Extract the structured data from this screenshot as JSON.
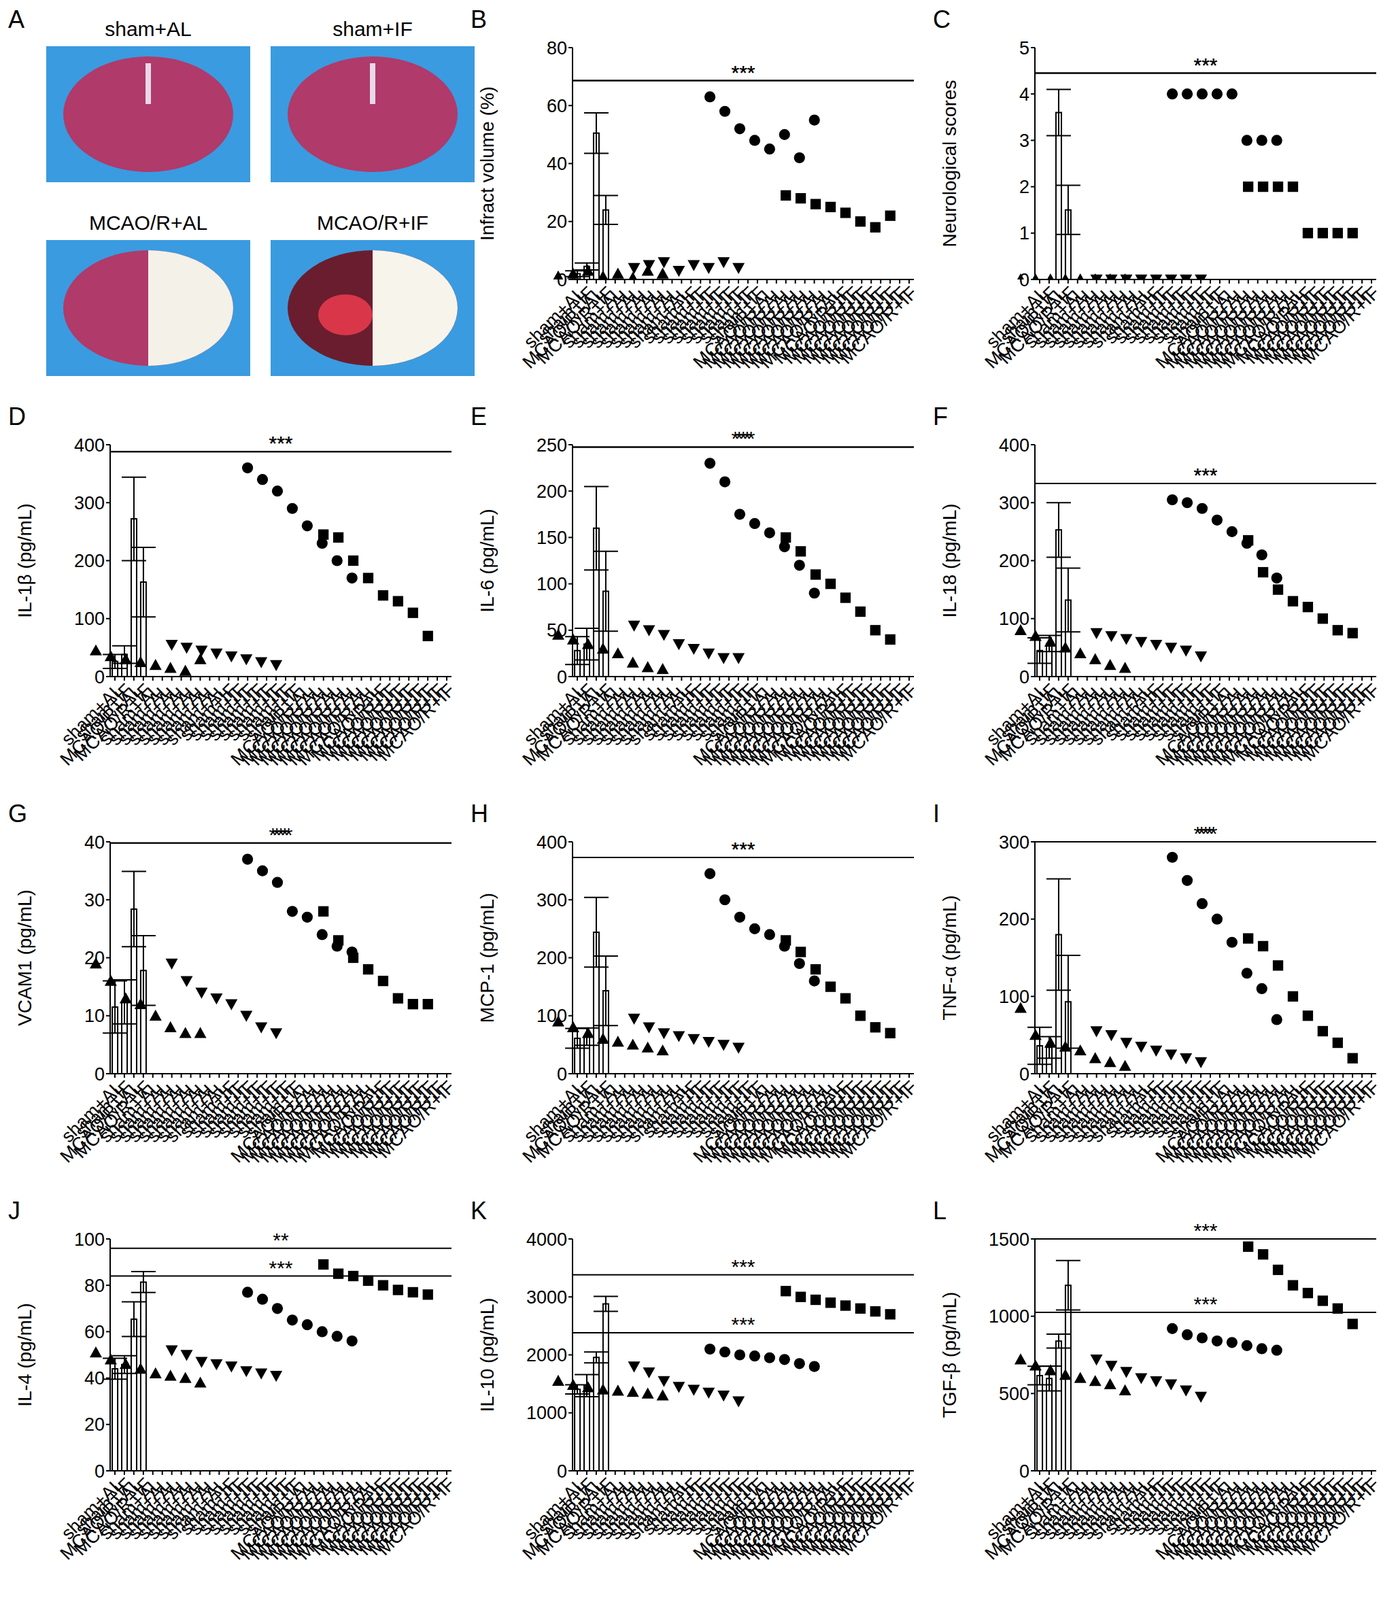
{
  "chart_data": [
    {
      "type": "image",
      "title": "A",
      "images": [
        {
          "label": "sham+AL"
        },
        {
          "label": "sham+IF"
        },
        {
          "label": "MCAO/R+AL"
        },
        {
          "label": "MCAO/R+IF"
        }
      ]
    },
    {
      "type": "bar",
      "title": "B",
      "y_label": "Infract volume (%)",
      "categories": [
        "sham+AL",
        "sham+IF",
        "MCAO/R+AL",
        "MCAO/R+IF"
      ],
      "values": [
        2,
        4.5,
        50.5,
        24
      ],
      "errors": [
        1,
        1.2,
        7,
        5
      ],
      "points": [
        {
          "marker": "triangle",
          "values": [
            1,
            2,
            3,
            1,
            2,
            0.5,
            3,
            2
          ]
        },
        {
          "marker": "triangle-down",
          "values": [
            4,
            5,
            6,
            3,
            5,
            4,
            6,
            4
          ]
        },
        {
          "marker": "circle",
          "values": [
            63,
            58,
            52,
            48,
            45,
            50,
            42,
            55
          ]
        },
        {
          "marker": "square",
          "values": [
            29,
            28,
            26,
            25,
            23,
            20,
            18,
            22
          ]
        }
      ],
      "ylim": [
        0,
        80
      ],
      "yticks": [
        0,
        20,
        40,
        60,
        80
      ],
      "annotations": [
        {
          "from": "sham+AL",
          "to": "MCAO/R+AL",
          "text": "***"
        },
        {
          "from": "MCAO/R+AL",
          "to": "MCAO/R+IF",
          "text": "***"
        }
      ]
    },
    {
      "type": "bar",
      "title": "C",
      "y_label": "Neurological scores",
      "categories": [
        "sham+AL",
        "sham+IF",
        "MCAO/R+AL",
        "MCAO/R+IF"
      ],
      "values": [
        0,
        0,
        3.6,
        1.5
      ],
      "errors": [
        0,
        0,
        0.5,
        0.53
      ],
      "points": [
        {
          "marker": "triangle",
          "values": [
            0,
            0,
            0,
            0,
            0,
            0,
            0,
            0
          ]
        },
        {
          "marker": "triangle-down",
          "values": [
            0,
            0,
            0,
            0,
            0,
            0,
            0,
            0
          ]
        },
        {
          "marker": "circle",
          "values": [
            4,
            4,
            4,
            4,
            4,
            3,
            3,
            3
          ]
        },
        {
          "marker": "square",
          "values": [
            2,
            2,
            2,
            2,
            1,
            1,
            1,
            1
          ]
        }
      ],
      "ylim": [
        0,
        5
      ],
      "yticks": [
        0,
        1,
        2,
        3,
        4,
        5
      ],
      "annotations": [
        {
          "from": "sham+AL",
          "to": "MCAO/R+AL",
          "text": "***"
        },
        {
          "from": "MCAO/R+AL",
          "to": "MCAO/R+IF",
          "text": "***"
        }
      ]
    },
    {
      "type": "bar",
      "title": "D",
      "y_label": "IL-1β (pg/mL)",
      "categories": [
        "sham+AL",
        "sham+IF",
        "MCAO/R+AL",
        "MCAO/R+IF"
      ],
      "values": [
        26,
        38,
        272,
        163
      ],
      "errors": [
        12,
        15,
        72,
        60
      ],
      "points": [
        {
          "marker": "triangle",
          "values": [
            45,
            35,
            30,
            25,
            20,
            15,
            10,
            30
          ]
        },
        {
          "marker": "triangle-down",
          "values": [
            55,
            50,
            45,
            40,
            35,
            30,
            25,
            20
          ]
        },
        {
          "marker": "circle",
          "values": [
            360,
            340,
            320,
            290,
            260,
            230,
            200,
            170
          ]
        },
        {
          "marker": "square",
          "values": [
            245,
            240,
            200,
            170,
            140,
            130,
            110,
            70
          ]
        }
      ],
      "ylim": [
        0,
        400
      ],
      "yticks": [
        0,
        100,
        200,
        300,
        400
      ],
      "annotations": [
        {
          "from": "sham+AL",
          "to": "MCAO/R+AL",
          "text": "***"
        },
        {
          "from": "MCAO/R+AL",
          "to": "MCAO/R+IF",
          "text": "***"
        }
      ]
    },
    {
      "type": "bar",
      "title": "E",
      "y_label": "IL-6 (pg/mL)",
      "categories": [
        "sham+AL",
        "sham+IF",
        "MCAO/R+AL",
        "MCAO/R+IF"
      ],
      "values": [
        28,
        35,
        160,
        92
      ],
      "errors": [
        15,
        17,
        45,
        43
      ],
      "points": [
        {
          "marker": "triangle",
          "values": [
            45,
            40,
            35,
            30,
            25,
            15,
            10,
            8
          ]
        },
        {
          "marker": "triangle-down",
          "values": [
            55,
            50,
            45,
            35,
            30,
            25,
            20,
            20
          ]
        },
        {
          "marker": "circle",
          "values": [
            230,
            210,
            175,
            165,
            155,
            140,
            120,
            90
          ]
        },
        {
          "marker": "square",
          "values": [
            150,
            135,
            110,
            100,
            85,
            70,
            50,
            40
          ]
        }
      ],
      "ylim": [
        0,
        250
      ],
      "yticks": [
        0,
        50,
        100,
        150,
        200,
        250
      ],
      "annotations": [
        {
          "from": "sham+AL",
          "to": "MCAO/R+AL",
          "text": "***"
        },
        {
          "from": "MCAO/R+AL",
          "to": "MCAO/R+IF",
          "text": "**"
        }
      ]
    },
    {
      "type": "bar",
      "title": "F",
      "y_label": "IL-18 (pg/mL)",
      "categories": [
        "sham+AL",
        "sham+IF",
        "MCAO/R+AL",
        "MCAO/R+IF"
      ],
      "values": [
        45,
        57,
        253,
        132
      ],
      "errors": [
        22,
        14,
        47,
        55
      ],
      "points": [
        {
          "marker": "triangle",
          "values": [
            80,
            70,
            60,
            50,
            40,
            30,
            20,
            15
          ]
        },
        {
          "marker": "triangle-down",
          "values": [
            75,
            70,
            65,
            60,
            55,
            50,
            45,
            35
          ]
        },
        {
          "marker": "circle",
          "values": [
            305,
            300,
            290,
            270,
            250,
            230,
            210,
            170
          ]
        },
        {
          "marker": "square",
          "values": [
            235,
            180,
            150,
            130,
            120,
            100,
            80,
            75
          ]
        }
      ],
      "ylim": [
        0,
        400
      ],
      "yticks": [
        0,
        100,
        200,
        300,
        400
      ],
      "annotations": [
        {
          "from": "sham+AL",
          "to": "MCAO/R+AL",
          "text": "***"
        },
        {
          "from": "MCAO/R+AL",
          "to": "MCAO/R+IF",
          "text": "***"
        }
      ]
    },
    {
      "type": "bar",
      "title": "G",
      "y_label": "VCAM1 (pg/mL)",
      "categories": [
        "sham+AL",
        "sham+IF",
        "MCAO/R+AL",
        "MCAO/R+IF"
      ],
      "values": [
        11.5,
        12.4,
        28.4,
        17.8
      ],
      "errors": [
        4.5,
        3.8,
        6.5,
        6
      ],
      "points": [
        {
          "marker": "triangle",
          "values": [
            19,
            16,
            13,
            12,
            10,
            8,
            7,
            7
          ]
        },
        {
          "marker": "triangle-down",
          "values": [
            19,
            16,
            14,
            13,
            12,
            10,
            8,
            7
          ]
        },
        {
          "marker": "circle",
          "values": [
            37,
            35,
            33,
            28,
            27,
            24,
            22,
            21
          ]
        },
        {
          "marker": "square",
          "values": [
            28,
            23,
            20,
            18,
            16,
            13,
            12,
            12
          ]
        }
      ],
      "ylim": [
        0,
        40
      ],
      "yticks": [
        0,
        10,
        20,
        30,
        40
      ],
      "annotations": [
        {
          "from": "sham+AL",
          "to": "MCAO/R+AL",
          "text": "***"
        },
        {
          "from": "MCAO/R+AL",
          "to": "MCAO/R+IF",
          "text": "**"
        }
      ]
    },
    {
      "type": "bar",
      "title": "H",
      "y_label": "MCP-1 (pg/mL)",
      "categories": [
        "sham+AL",
        "sham+IF",
        "MCAO/R+AL",
        "MCAO/R+IF"
      ],
      "values": [
        61,
        64,
        244,
        143
      ],
      "errors": [
        17,
        15,
        60,
        60
      ],
      "points": [
        {
          "marker": "triangle",
          "values": [
            90,
            80,
            70,
            60,
            55,
            50,
            45,
            40
          ]
        },
        {
          "marker": "triangle-down",
          "values": [
            95,
            80,
            70,
            65,
            60,
            55,
            50,
            45
          ]
        },
        {
          "marker": "circle",
          "values": [
            345,
            300,
            270,
            250,
            240,
            220,
            190,
            160
          ]
        },
        {
          "marker": "square",
          "values": [
            230,
            210,
            180,
            150,
            130,
            100,
            80,
            70
          ]
        }
      ],
      "ylim": [
        0,
        400
      ],
      "yticks": [
        0,
        100,
        200,
        300,
        400
      ],
      "annotations": [
        {
          "from": "sham+AL",
          "to": "MCAO/R+AL",
          "text": "***"
        },
        {
          "from": "MCAO/R+AL",
          "to": "MCAO/R+IF",
          "text": "***"
        }
      ]
    },
    {
      "type": "bar",
      "title": "I",
      "y_label": "TNF-α (pg/mL)",
      "categories": [
        "sham+AL",
        "sham+IF",
        "MCAO/R+AL",
        "MCAO/R+IF"
      ],
      "values": [
        36,
        34,
        180,
        93
      ],
      "errors": [
        24,
        14,
        72,
        60
      ],
      "points": [
        {
          "marker": "triangle",
          "values": [
            85,
            50,
            40,
            35,
            30,
            20,
            15,
            10
          ]
        },
        {
          "marker": "triangle-down",
          "values": [
            55,
            50,
            40,
            35,
            30,
            25,
            20,
            15
          ]
        },
        {
          "marker": "circle",
          "values": [
            280,
            250,
            220,
            200,
            170,
            130,
            110,
            70
          ]
        },
        {
          "marker": "square",
          "values": [
            175,
            165,
            140,
            100,
            75,
            55,
            40,
            20
          ]
        }
      ],
      "ylim": [
        0,
        300
      ],
      "yticks": [
        0,
        100,
        200,
        300
      ],
      "annotations": [
        {
          "from": "sham+AL",
          "to": "MCAO/R+AL",
          "text": "***"
        },
        {
          "from": "MCAO/R+AL",
          "to": "MCAO/R+IF",
          "text": "**"
        }
      ]
    },
    {
      "type": "bar",
      "title": "J",
      "y_label": "IL-4 (pg/mL)",
      "categories": [
        "sham+AL",
        "sham+IF",
        "MCAO/R+AL",
        "MCAO/R+IF"
      ],
      "values": [
        44,
        45.8,
        65.4,
        81.4
      ],
      "errors": [
        4.5,
        3.8,
        7.5,
        4.5
      ],
      "points": [
        {
          "marker": "triangle",
          "values": [
            51,
            48,
            46,
            44,
            42,
            41,
            40,
            38
          ]
        },
        {
          "marker": "triangle-down",
          "values": [
            52,
            50,
            47,
            46,
            45,
            43,
            42,
            41
          ]
        },
        {
          "marker": "circle",
          "values": [
            77,
            74,
            70,
            65,
            63,
            60,
            58,
            56
          ]
        },
        {
          "marker": "square",
          "values": [
            89,
            85,
            84,
            82,
            80,
            78,
            77,
            76
          ]
        }
      ],
      "ylim": [
        0,
        100
      ],
      "yticks": [
        0,
        20,
        40,
        60,
        80,
        100
      ],
      "annotations": [
        {
          "from": "sham+AL",
          "to": "MCAO/R+AL",
          "text": "***"
        },
        {
          "from": "MCAO/R+AL",
          "to": "MCAO/R+IF",
          "text": "**"
        }
      ]
    },
    {
      "type": "bar",
      "title": "K",
      "y_label": "IL-10 (pg/mL)",
      "categories": [
        "sham+AL",
        "sham+IF",
        "MCAO/R+AL",
        "MCAO/R+IF"
      ],
      "values": [
        1405,
        1470,
        1956,
        2880
      ],
      "errors": [
        80,
        190,
        95,
        130
      ],
      "points": [
        {
          "marker": "triangle",
          "values": [
            1550,
            1480,
            1440,
            1400,
            1380,
            1360,
            1330,
            1300
          ]
        },
        {
          "marker": "triangle-down",
          "values": [
            1800,
            1700,
            1550,
            1450,
            1400,
            1350,
            1300,
            1200
          ]
        },
        {
          "marker": "circle",
          "values": [
            2100,
            2050,
            2000,
            1980,
            1950,
            1920,
            1850,
            1800
          ]
        },
        {
          "marker": "square",
          "values": [
            3100,
            3000,
            2950,
            2900,
            2850,
            2800,
            2750,
            2700
          ]
        }
      ],
      "ylim": [
        0,
        4000
      ],
      "yticks": [
        0,
        1000,
        2000,
        3000,
        4000
      ],
      "annotations": [
        {
          "from": "sham+AL",
          "to": "MCAO/R+AL",
          "text": "***"
        },
        {
          "from": "MCAO/R+AL",
          "to": "MCAO/R+IF",
          "text": "***"
        }
      ]
    },
    {
      "type": "bar",
      "title": "L",
      "y_label": "TGF-β (pg/mL)",
      "categories": [
        "sham+AL",
        "sham+IF",
        "MCAO/R+AL",
        "MCAO/R+IF"
      ],
      "values": [
        616,
        597,
        839,
        1200
      ],
      "errors": [
        60,
        80,
        45,
        160
      ],
      "points": [
        {
          "marker": "triangle",
          "values": [
            720,
            680,
            650,
            620,
            600,
            580,
            560,
            520
          ]
        },
        {
          "marker": "triangle-down",
          "values": [
            720,
            680,
            640,
            600,
            580,
            560,
            520,
            480
          ]
        },
        {
          "marker": "circle",
          "values": [
            920,
            880,
            860,
            840,
            830,
            810,
            790,
            780
          ]
        },
        {
          "marker": "square",
          "values": [
            1450,
            1400,
            1300,
            1200,
            1150,
            1100,
            1050,
            950
          ]
        }
      ],
      "ylim": [
        0,
        1500
      ],
      "yticks": [
        0,
        500,
        1000,
        1500
      ],
      "annotations": [
        {
          "from": "sham+AL",
          "to": "MCAO/R+AL",
          "text": "***"
        },
        {
          "from": "MCAO/R+AL",
          "to": "MCAO/R+IF",
          "text": "***"
        }
      ]
    }
  ]
}
